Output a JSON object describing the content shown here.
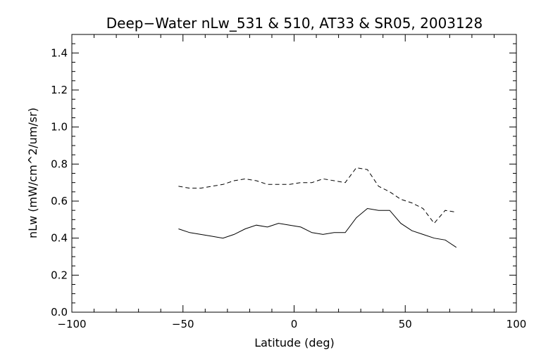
{
  "chart_data": {
    "type": "line",
    "title": "Deep−Water nLw_531 & 510, AT33 & SR05, 2003128",
    "xlabel": "Latitude (deg)",
    "ylabel": "nLw (mW/cm^2/um/sr)",
    "xlim": [
      -100,
      100
    ],
    "ylim": [
      0.0,
      1.5
    ],
    "x_ticks": [
      -100,
      -50,
      0,
      50,
      100
    ],
    "x_tick_labels": [
      "−100",
      "−50",
      "0",
      "50",
      "100"
    ],
    "y_ticks": [
      0.0,
      0.2,
      0.4,
      0.6,
      0.8,
      1.0,
      1.2,
      1.4
    ],
    "y_tick_labels": [
      "0.0",
      "0.2",
      "0.4",
      "0.6",
      "0.8",
      "1.0",
      "1.2",
      "1.4"
    ],
    "grid": false,
    "series": [
      {
        "style": "solid",
        "x": [
          -52,
          -47,
          -42,
          -37,
          -32,
          -27,
          -22,
          -17,
          -12,
          -7,
          -2,
          3,
          8,
          13,
          18,
          23,
          28,
          33,
          38,
          43,
          48,
          53,
          58,
          63,
          68,
          73
        ],
        "y": [
          0.45,
          0.43,
          0.42,
          0.41,
          0.4,
          0.42,
          0.45,
          0.47,
          0.46,
          0.48,
          0.47,
          0.46,
          0.43,
          0.42,
          0.43,
          0.43,
          0.51,
          0.56,
          0.55,
          0.55,
          0.48,
          0.44,
          0.42,
          0.4,
          0.39,
          0.35
        ]
      },
      {
        "style": "dashed",
        "x": [
          -52,
          -47,
          -42,
          -37,
          -32,
          -27,
          -22,
          -17,
          -12,
          -7,
          -2,
          3,
          8,
          13,
          18,
          23,
          28,
          33,
          38,
          43,
          48,
          53,
          58,
          63,
          68,
          73
        ],
        "y": [
          0.68,
          0.67,
          0.67,
          0.68,
          0.69,
          0.71,
          0.72,
          0.71,
          0.69,
          0.69,
          0.69,
          0.7,
          0.7,
          0.72,
          0.71,
          0.7,
          0.78,
          0.77,
          0.68,
          0.65,
          0.61,
          0.59,
          0.56,
          0.48,
          0.55,
          0.54
        ]
      }
    ]
  }
}
